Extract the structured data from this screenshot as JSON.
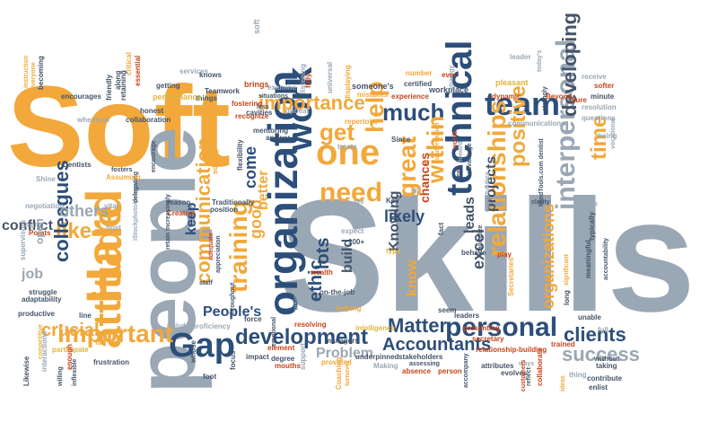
{
  "words": {
    "soft": "Soft",
    "skills": "Skills",
    "people": "people",
    "organization": "organization",
    "technical": "technical",
    "team": "team",
    "one": "one",
    "work": "work",
    "hard": "Hard",
    "attitude": "attitude",
    "gap": "Gap",
    "interpersonal": "interpersonal",
    "personal": "personal",
    "relationships": "relationships",
    "important": "important",
    "development": "development",
    "success": "success",
    "matter": "Matter",
    "accountants": "Accountants",
    "much": "much",
    "need": "need",
    "get": "get",
    "training": "training",
    "communication": "communication",
    "great": "great",
    "help": "help",
    "within": "within",
    "developing": "developing",
    "positive": "positive",
    "time": "time",
    "importance": "importance",
    "clients": "clients",
    "like": "like",
    "colleagues": "colleagues",
    "crucial": "crucial",
    "others": "others",
    "conflict": "conflict",
    "job": "job",
    "peoples": "People's",
    "problem": "Problem",
    "ethic": "ethic",
    "lots": "lots",
    "build": "build",
    "likely": "likely",
    "knowing": "Knowing",
    "leads": "leads",
    "projects": "projects",
    "excel": "excel",
    "organizations": "organizations",
    "chances": "chances",
    "come": "come",
    "good": "good",
    "keep": "keep",
    "better": "better",
    "know": "know",
    "knows": "knows",
    "soft_word": "soft",
    "teamwork": "Teamwork",
    "things": "things",
    "brings": "brings",
    "examine": "examine",
    "someones": "someone's",
    "mistakes": "mistakes",
    "workplace": "workplace",
    "experience": "experience",
    "pleasant": "pleasant",
    "dynamic": "dynamic",
    "leader": "leader",
    "todays": "today's",
    "beyond": "Beyond",
    "receive": "receive",
    "softer": "softer",
    "minute": "minute",
    "resolution": "resolution",
    "questions": "questions",
    "communications": "communications",
    "being": "being",
    "vocational": "vocational",
    "repertoire": "repertoire",
    "recognize": "recognize",
    "fostering": "fostering",
    "performance": "performance",
    "getting": "getting",
    "services": "services",
    "essential": "essential",
    "collaboration": "collaboration",
    "encourages": "encourages",
    "whenever": "whenever",
    "honest": "honest",
    "friendly": "friendly",
    "along": "along",
    "retaining": "retaining",
    "critical": "critical",
    "becoming": "becoming",
    "dentists": "Dentists",
    "shine": "Shine",
    "negotiation": "negotiation",
    "points": "Points",
    "supervisors": "supervisors",
    "adaptability": "adaptability",
    "productive": "productive",
    "participate": "participate",
    "frustration": "frustration",
    "likewise": "Likewise",
    "interactions": "interactions",
    "enough": "enough",
    "proficiency": "proficiency",
    "include": "include",
    "whose": "whose",
    "foot": "foot",
    "focus": "focus",
    "impact": "impact",
    "element": "element",
    "mouths": "mouths",
    "degree": "degree",
    "emotional": "emotional",
    "provided": "provided",
    "support": "support",
    "coaching": "Coaching",
    "making": "Making",
    "managers": "managers",
    "intelligence": "intelligence",
    "underpinned": "underpinned",
    "stakeholders": "stakeholders",
    "absence": "absence",
    "person": "person",
    "attributes": "attributes",
    "ways": "ways",
    "evolves": "evolves",
    "collaborate": "collaborate",
    "contribute": "contribute",
    "enlist": "enlist",
    "thing": "thing",
    "taking": "taking",
    "without": "without",
    "trained": "trained",
    "unable": "unable",
    "full": "full",
    "secretary": "secretary",
    "presenting": "presenting",
    "relationship_building": "relationship-building",
    "secretaries": "Secretaries",
    "play": "play",
    "behave": "behave",
    "fact": "fact",
    "expect": "expect",
    "hundred": "100+",
    "type": "type",
    "see": "see",
    "key": "Key",
    "resolving": "resolving",
    "wealth": "wealth",
    "on_the_job": "on-the-job",
    "helping": "helping",
    "vision": "vision",
    "position": "position",
    "reason": "reason",
    "creative": "Creative",
    "traditionally": "Traditionally",
    "flexibility": "flexibility",
    "vital": "vital",
    "host": "host",
    "high": "high",
    "struggle": "struggle",
    "line": "line",
    "far": "far",
    "retain": "retain increasingly",
    "istock": "iStockphoto/peepo",
    "delegating": "delegating",
    "adequate": "adequate",
    "appreciation": "appreciation",
    "throughout": "throughout",
    "staff": "staff",
    "force": "force",
    "answer": "answer",
    "mentoring": "mentoring",
    "cavities": "cavities",
    "situations": "situations",
    "less": "less",
    "upbeat": "upbeat",
    "listening": "listening",
    "fully": "fully",
    "universal": "universal",
    "displaying": "displaying",
    "number": "number",
    "certified": "certified",
    "strategy": "strategy",
    "ever": "ever",
    "since": "Since",
    "treats": "treats",
    "advantage": "advantage",
    "clarity": "clarity",
    "mindtools": "MindTools.com dentist",
    "acts": "acts",
    "meaningful": "meaningful",
    "typically": "typically",
    "accountability": "accountability",
    "sure": "Sure",
    "strongly": "strongly",
    "leaders": "leaders",
    "seem": "seem",
    "turnover": "turnover",
    "assessing": "assessing",
    "accompany": "accompany",
    "significant": "significant",
    "customers": "customers",
    "ideas": "ideas",
    "long": "long",
    "cashless": "capitalize",
    "fill": "fill",
    "real": "real",
    "toward": "toward",
    "words": "words",
    "undervalued": "undervalued",
    "instruction": "instruction",
    "everyone": "everyone",
    "assuming": "Assuming",
    "fosters": "fosters",
    "encourage": "encourage",
    "open": "open",
    "willing": "willing",
    "inflexible": "inflexible",
    "competitive": "competitive",
    "solving": "solving",
    "opportunities": "opportunities",
    "reflect": "reflect"
  }
}
